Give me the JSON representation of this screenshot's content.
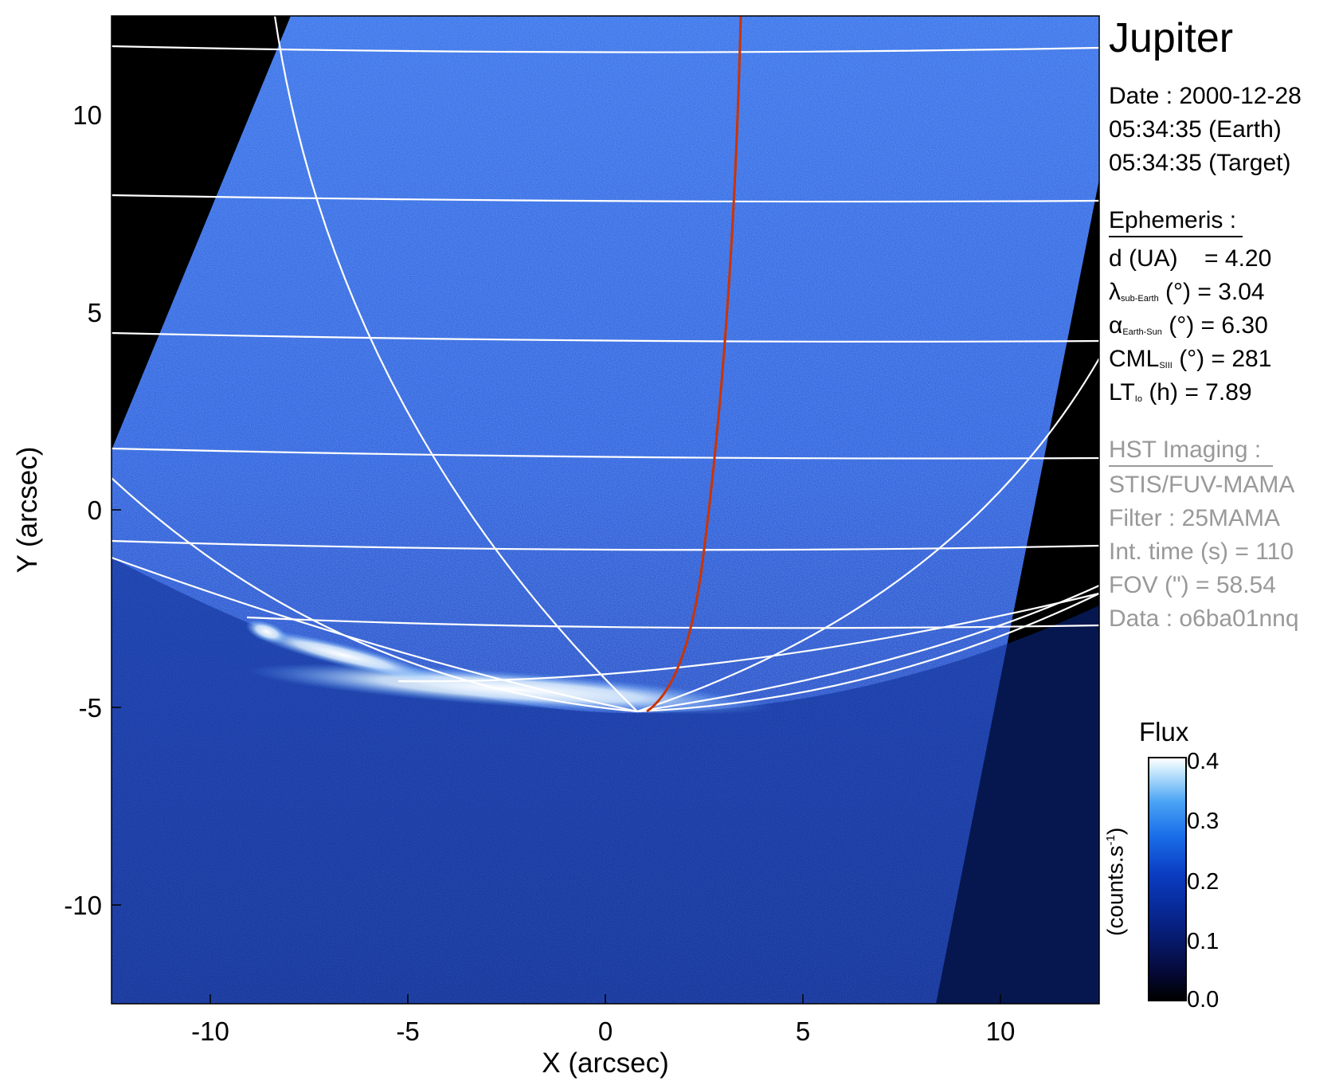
{
  "planet": "Jupiter",
  "observation": {
    "date_line": "Date : 2000-12-28",
    "earth_time": "05:34:35 (Earth)",
    "target_time": "05:34:35 (Target)"
  },
  "ephemeris": {
    "heading": "Ephemeris :",
    "d_label": "d (UA)",
    "d_value": "= 4.20",
    "lambda_symbol": "λ",
    "lambda_sub": "sub-Earth",
    "lambda_rest": " (°) = 3.04",
    "alpha_symbol": "α",
    "alpha_sub": "Earth-Sun",
    "alpha_rest": " (°) = 6.30",
    "cml_label": "CML",
    "cml_sub": "SIII",
    "cml_rest": " (°) = 281",
    "lt_label": "LT",
    "lt_sub": "Io",
    "lt_rest": " (h) = 7.89"
  },
  "hst": {
    "heading": "HST Imaging :",
    "instrument": "STIS/FUV-MAMA",
    "filter": "Filter : 25MAMA",
    "int_time": "Int. time (s) = 110",
    "fov": "FOV (\") = 58.54",
    "data_id": "Data : o6ba01nnq"
  },
  "axes": {
    "x_label": "X (arcsec)",
    "y_label": "Y (arcsec)",
    "x_ticks": [
      "-10",
      "-5",
      "0",
      "5",
      "10"
    ],
    "y_ticks": [
      "10",
      "5",
      "0",
      "-5",
      "-10"
    ],
    "xlim": [
      -12.5,
      12.5
    ],
    "ylim": [
      -12.5,
      12.5
    ]
  },
  "colorbar": {
    "title": "Flux",
    "unit": "(counts.s",
    "unit_sup": "-1",
    "unit_end": ")",
    "ticks": [
      "0.4",
      "0.3",
      "0.2",
      "0.1",
      "0.0"
    ]
  },
  "colors": {
    "background": "#000000",
    "image_blue": "#1b4fd6",
    "grid_lines": "#ffffff",
    "io_footprint": "#cc3300",
    "grey_text": "#999999"
  }
}
